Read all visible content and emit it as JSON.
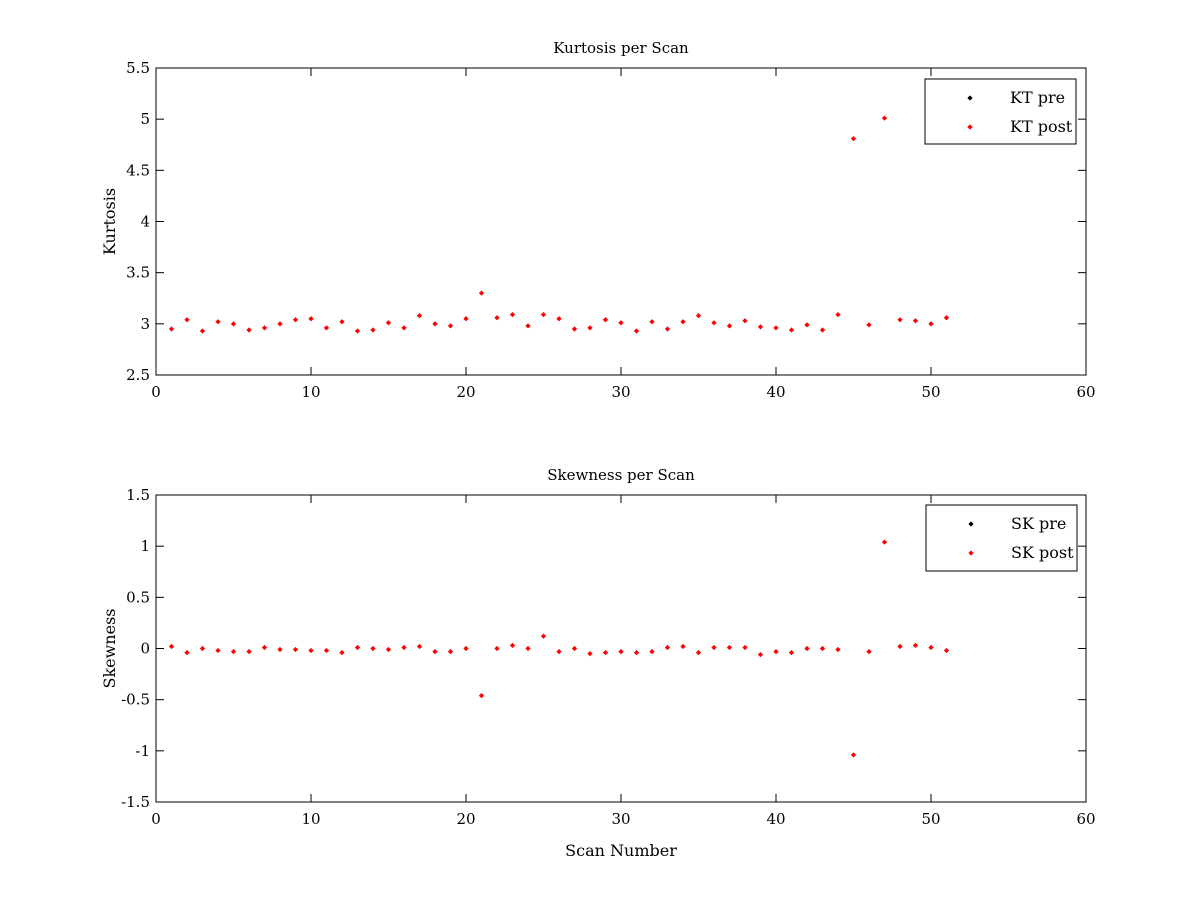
{
  "chart_data": [
    {
      "type": "scatter",
      "title": "Kurtosis per Scan",
      "xlabel": "",
      "ylabel": "Kurtosis",
      "xlim": [
        0,
        60
      ],
      "ylim": [
        2.5,
        5.5
      ],
      "xticks": [
        "0",
        "10",
        "20",
        "30",
        "40",
        "50",
        "60"
      ],
      "yticks": [
        "2.5",
        "3",
        "3.5",
        "4",
        "4.5",
        "5",
        "5.5"
      ],
      "grid": false,
      "legend_position": "top-right",
      "series": [
        {
          "name": "KT pre",
          "color": "#000000",
          "x": [],
          "y": []
        },
        {
          "name": "KT post",
          "color": "#ff0000",
          "x": [
            1,
            2,
            3,
            4,
            5,
            6,
            7,
            8,
            9,
            10,
            11,
            12,
            13,
            14,
            15,
            16,
            17,
            18,
            19,
            20,
            21,
            22,
            23,
            24,
            25,
            26,
            27,
            28,
            29,
            30,
            31,
            32,
            33,
            34,
            35,
            36,
            37,
            38,
            39,
            40,
            41,
            42,
            43,
            44,
            45,
            46,
            47,
            48,
            49,
            50,
            51
          ],
          "y": [
            2.95,
            3.04,
            2.93,
            3.02,
            3.0,
            2.94,
            2.96,
            3.0,
            3.04,
            3.05,
            2.96,
            3.02,
            2.93,
            2.94,
            3.01,
            2.96,
            3.08,
            3.0,
            2.98,
            3.05,
            3.3,
            3.06,
            3.09,
            2.98,
            3.09,
            3.05,
            2.95,
            2.96,
            3.04,
            3.01,
            2.93,
            3.02,
            2.95,
            3.02,
            3.08,
            3.01,
            2.98,
            3.03,
            2.97,
            2.96,
            2.94,
            2.99,
            2.94,
            3.09,
            4.81,
            2.99,
            5.01,
            3.04,
            3.03,
            3.0,
            3.06
          ]
        }
      ]
    },
    {
      "type": "scatter",
      "title": "Skewness per Scan",
      "xlabel": "Scan Number",
      "ylabel": "Skewness",
      "xlim": [
        0,
        60
      ],
      "ylim": [
        -1.5,
        1.5
      ],
      "xticks": [
        "0",
        "10",
        "20",
        "30",
        "40",
        "50",
        "60"
      ],
      "yticks": [
        "-1.5",
        "-1",
        "-0.5",
        "0",
        "0.5",
        "1",
        "1.5"
      ],
      "grid": false,
      "legend_position": "top-right",
      "series": [
        {
          "name": "SK pre",
          "color": "#000000",
          "x": [],
          "y": []
        },
        {
          "name": "SK post",
          "color": "#ff0000",
          "x": [
            1,
            2,
            3,
            4,
            5,
            6,
            7,
            8,
            9,
            10,
            11,
            12,
            13,
            14,
            15,
            16,
            17,
            18,
            19,
            20,
            21,
            22,
            23,
            24,
            25,
            26,
            27,
            28,
            29,
            30,
            31,
            32,
            33,
            34,
            35,
            36,
            37,
            38,
            39,
            40,
            41,
            42,
            43,
            44,
            45,
            46,
            47,
            48,
            49,
            50,
            51
          ],
          "y": [
            0.02,
            -0.04,
            0.0,
            -0.02,
            -0.03,
            -0.03,
            0.01,
            -0.01,
            -0.01,
            -0.02,
            -0.02,
            -0.04,
            0.01,
            0.0,
            -0.01,
            0.01,
            0.02,
            -0.03,
            -0.03,
            0.0,
            -0.46,
            0.0,
            0.03,
            0.0,
            0.12,
            -0.03,
            0.0,
            -0.05,
            -0.04,
            -0.03,
            -0.04,
            -0.03,
            0.01,
            0.02,
            -0.04,
            0.01,
            0.01,
            0.01,
            -0.06,
            -0.03,
            -0.04,
            0.0,
            0.0,
            -0.01,
            -1.04,
            -0.03,
            1.04,
            0.02,
            0.03,
            0.01,
            -0.02
          ]
        }
      ]
    }
  ]
}
